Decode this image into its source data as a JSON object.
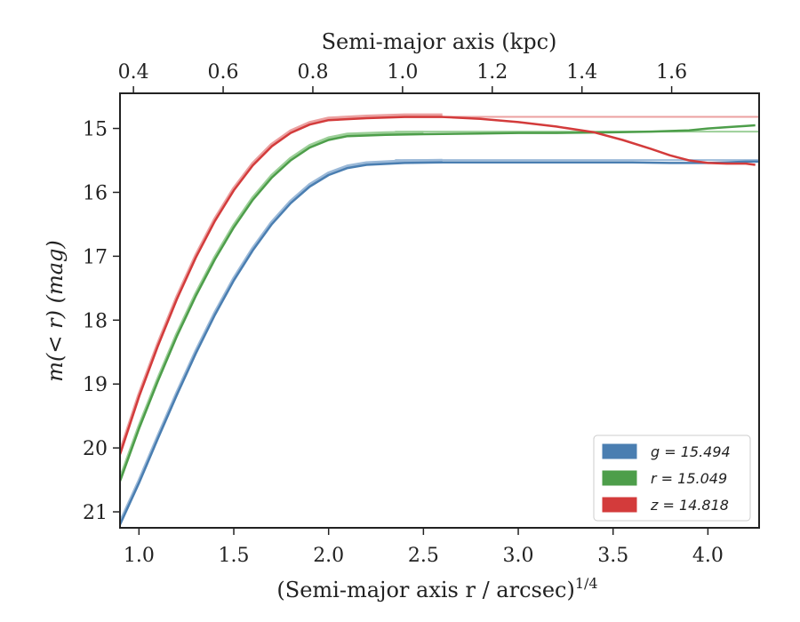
{
  "chart_data": {
    "type": "line",
    "xlabel_bottom": "(Semi-major axis r / arcsec)",
    "xlabel_bottom_superscript": "1/4",
    "xlabel_top": "Semi-major axis (kpc)",
    "ylabel": "m(< r) (mag)",
    "xlim": [
      0.9,
      4.27
    ],
    "ylim": [
      21.25,
      14.45
    ],
    "y_inverted": true,
    "top_xlim": [
      0.37,
      1.795
    ],
    "x_ticks": [
      1.0,
      1.5,
      2.0,
      2.5,
      3.0,
      3.5,
      4.0
    ],
    "x_tick_labels": [
      "1.0",
      "1.5",
      "2.0",
      "2.5",
      "3.0",
      "3.5",
      "4.0"
    ],
    "top_ticks": [
      0.4,
      0.6,
      0.8,
      1.0,
      1.2,
      1.4,
      1.6
    ],
    "top_tick_labels": [
      "0.4",
      "0.6",
      "0.8",
      "1.0",
      "1.2",
      "1.4",
      "1.6"
    ],
    "y_ticks": [
      15,
      16,
      17,
      18,
      19,
      20,
      21
    ],
    "y_tick_labels": [
      "15",
      "16",
      "17",
      "18",
      "19",
      "20",
      "21"
    ],
    "grid": false,
    "legend_position": "lower-right",
    "series": [
      {
        "name": "g = 15.494",
        "color": "#4a7eb1",
        "model_color": "#9bb9d8",
        "asymptote": 15.494,
        "data": [
          [
            0.9,
            21.2
          ],
          [
            1.0,
            20.55
          ],
          [
            1.1,
            19.85
          ],
          [
            1.2,
            19.17
          ],
          [
            1.3,
            18.52
          ],
          [
            1.4,
            17.92
          ],
          [
            1.5,
            17.38
          ],
          [
            1.6,
            16.91
          ],
          [
            1.7,
            16.5
          ],
          [
            1.8,
            16.17
          ],
          [
            1.9,
            15.91
          ],
          [
            2.0,
            15.73
          ],
          [
            2.1,
            15.62
          ],
          [
            2.2,
            15.57
          ],
          [
            2.4,
            15.54
          ],
          [
            2.6,
            15.53
          ],
          [
            2.8,
            15.53
          ],
          [
            3.0,
            15.53
          ],
          [
            3.2,
            15.53
          ],
          [
            3.4,
            15.53
          ],
          [
            3.6,
            15.53
          ],
          [
            3.8,
            15.54
          ],
          [
            4.0,
            15.54
          ],
          [
            4.1,
            15.53
          ],
          [
            4.2,
            15.52
          ],
          [
            4.27,
            15.52
          ]
        ]
      },
      {
        "name": "r = 15.049",
        "color": "#4d9e4a",
        "model_color": "#9ccf98",
        "asymptote": 15.049,
        "data": [
          [
            0.9,
            20.52
          ],
          [
            1.0,
            19.7
          ],
          [
            1.1,
            18.95
          ],
          [
            1.2,
            18.25
          ],
          [
            1.3,
            17.62
          ],
          [
            1.4,
            17.05
          ],
          [
            1.5,
            16.55
          ],
          [
            1.6,
            16.12
          ],
          [
            1.7,
            15.77
          ],
          [
            1.8,
            15.5
          ],
          [
            1.9,
            15.3
          ],
          [
            2.0,
            15.18
          ],
          [
            2.1,
            15.12
          ],
          [
            2.3,
            15.1
          ],
          [
            2.5,
            15.09
          ],
          [
            2.8,
            15.08
          ],
          [
            3.0,
            15.07
          ],
          [
            3.2,
            15.07
          ],
          [
            3.5,
            15.06
          ],
          [
            3.7,
            15.05
          ],
          [
            3.9,
            15.03
          ],
          [
            4.0,
            15.0
          ],
          [
            4.1,
            14.98
          ],
          [
            4.2,
            14.96
          ],
          [
            4.25,
            14.95
          ]
        ]
      },
      {
        "name": "z = 14.818",
        "color": "#d33b3b",
        "model_color": "#eba0a0",
        "asymptote": 14.818,
        "data": [
          [
            0.9,
            20.1
          ],
          [
            1.0,
            19.2
          ],
          [
            1.1,
            18.4
          ],
          [
            1.2,
            17.67
          ],
          [
            1.3,
            17.02
          ],
          [
            1.4,
            16.45
          ],
          [
            1.5,
            15.97
          ],
          [
            1.6,
            15.58
          ],
          [
            1.7,
            15.28
          ],
          [
            1.8,
            15.07
          ],
          [
            1.9,
            14.94
          ],
          [
            2.0,
            14.87
          ],
          [
            2.2,
            14.84
          ],
          [
            2.4,
            14.82
          ],
          [
            2.6,
            14.82
          ],
          [
            2.8,
            14.85
          ],
          [
            3.0,
            14.9
          ],
          [
            3.2,
            14.97
          ],
          [
            3.4,
            15.06
          ],
          [
            3.55,
            15.18
          ],
          [
            3.7,
            15.32
          ],
          [
            3.8,
            15.42
          ],
          [
            3.9,
            15.5
          ],
          [
            4.0,
            15.54
          ],
          [
            4.1,
            15.55
          ],
          [
            4.2,
            15.55
          ],
          [
            4.25,
            15.57
          ]
        ]
      }
    ]
  }
}
